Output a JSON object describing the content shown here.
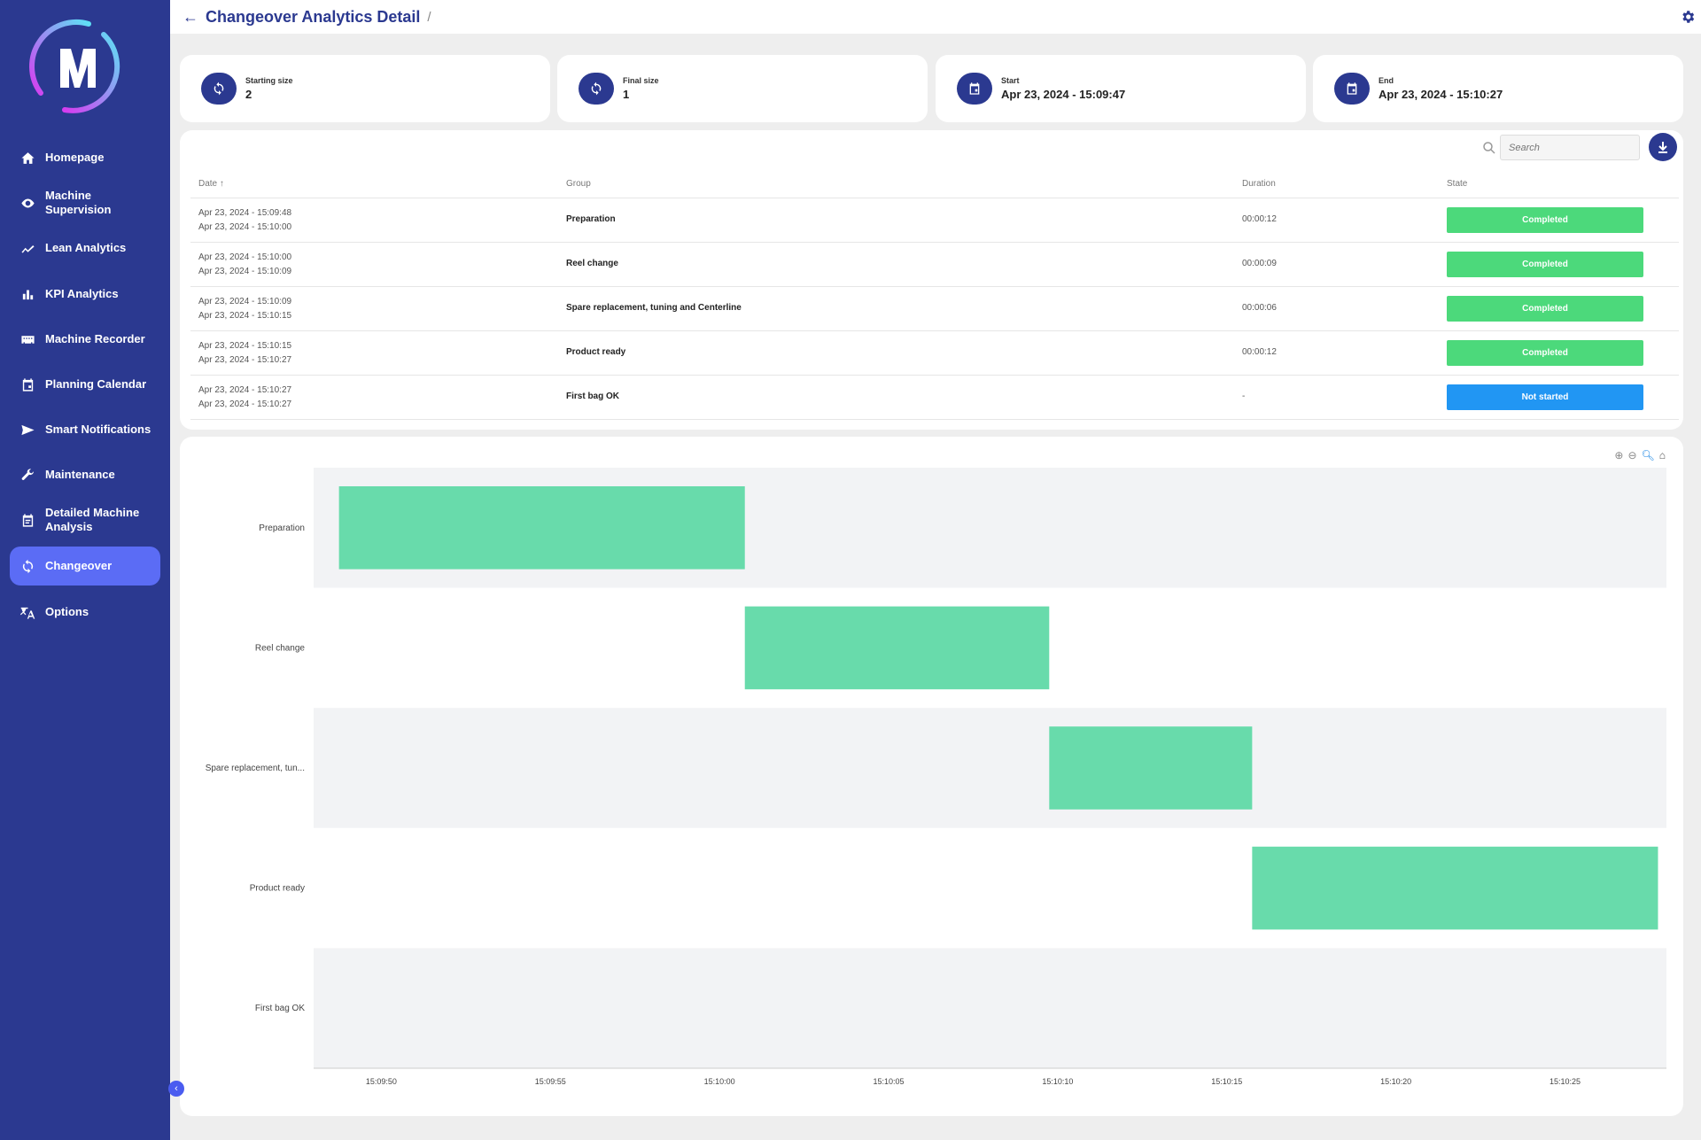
{
  "header": {
    "title": "Changeover Analytics Detail",
    "separator": "/"
  },
  "sidebar": {
    "items": [
      {
        "label": "Homepage",
        "icon": "home-icon"
      },
      {
        "label": "Machine Supervision",
        "icon": "eye-icon"
      },
      {
        "label": "Lean Analytics",
        "icon": "trend-icon"
      },
      {
        "label": "KPI Analytics",
        "icon": "bar-chart-icon"
      },
      {
        "label": "Machine Recorder",
        "icon": "recorder-icon"
      },
      {
        "label": "Planning Calendar",
        "icon": "calendar-icon"
      },
      {
        "label": "Smart Notifications",
        "icon": "send-icon"
      },
      {
        "label": "Maintenance",
        "icon": "wrench-icon"
      },
      {
        "label": "Detailed Machine Analysis",
        "icon": "event-note-icon"
      },
      {
        "label": "Changeover",
        "icon": "sync-icon",
        "active": true
      },
      {
        "label": "Options",
        "icon": "translate-icon"
      }
    ]
  },
  "stats": [
    {
      "label": "Starting size",
      "value": "2",
      "icon": "sync-icon"
    },
    {
      "label": "Final size",
      "value": "1",
      "icon": "sync-icon"
    },
    {
      "label": "Start",
      "value": "Apr 23, 2024 - 15:09:47",
      "icon": "calendar-icon"
    },
    {
      "label": "End",
      "value": "Apr 23, 2024 - 15:10:27",
      "icon": "calendar-icon"
    }
  ],
  "table": {
    "search_placeholder": "Search",
    "columns": [
      "Date ↑",
      "Group",
      "Duration",
      "State"
    ],
    "rows": [
      {
        "start": "Apr 23, 2024 - 15:09:48",
        "end": "Apr 23, 2024 - 15:10:00",
        "group": "Preparation",
        "duration": "00:00:12",
        "state": "Completed"
      },
      {
        "start": "Apr 23, 2024 - 15:10:00",
        "end": "Apr 23, 2024 - 15:10:09",
        "group": "Reel change",
        "duration": "00:00:09",
        "state": "Completed"
      },
      {
        "start": "Apr 23, 2024 - 15:10:09",
        "end": "Apr 23, 2024 - 15:10:15",
        "group": "Spare replacement, tuning and Centerline",
        "duration": "00:00:06",
        "state": "Completed"
      },
      {
        "start": "Apr 23, 2024 - 15:10:15",
        "end": "Apr 23, 2024 - 15:10:27",
        "group": "Product ready",
        "duration": "00:00:12",
        "state": "Completed"
      },
      {
        "start": "Apr 23, 2024 - 15:10:27",
        "end": "Apr 23, 2024 - 15:10:27",
        "group": "First bag OK",
        "duration": "-",
        "state": "Not started"
      }
    ],
    "state_colors": {
      "Completed": "#4cd97b",
      "Not started": "#2196f3"
    }
  },
  "chart_data": {
    "type": "bar",
    "orientation": "horizontal-timeline",
    "categories": [
      "Preparation",
      "Reel change",
      "Spare replacement, tun...",
      "Product ready",
      "First bag OK"
    ],
    "bars": [
      {
        "category": "Preparation",
        "start": "15:09:48",
        "end": "15:10:00"
      },
      {
        "category": "Reel change",
        "start": "15:10:00",
        "end": "15:10:09"
      },
      {
        "category": "Spare replacement, tun...",
        "start": "15:10:09",
        "end": "15:10:15"
      },
      {
        "category": "Product ready",
        "start": "15:10:15",
        "end": "15:10:27"
      }
    ],
    "xlim": [
      "15:09:48",
      "15:10:27"
    ],
    "xticks": [
      "15:09:50",
      "15:09:55",
      "15:10:00",
      "15:10:05",
      "15:10:10",
      "15:10:15",
      "15:10:20",
      "15:10:25"
    ],
    "bar_color": "#68dbab",
    "row_band_color": "#f2f3f5",
    "toolbar": [
      "zoom-in-icon",
      "zoom-out-icon",
      "zoom-select-icon",
      "home-icon"
    ]
  }
}
